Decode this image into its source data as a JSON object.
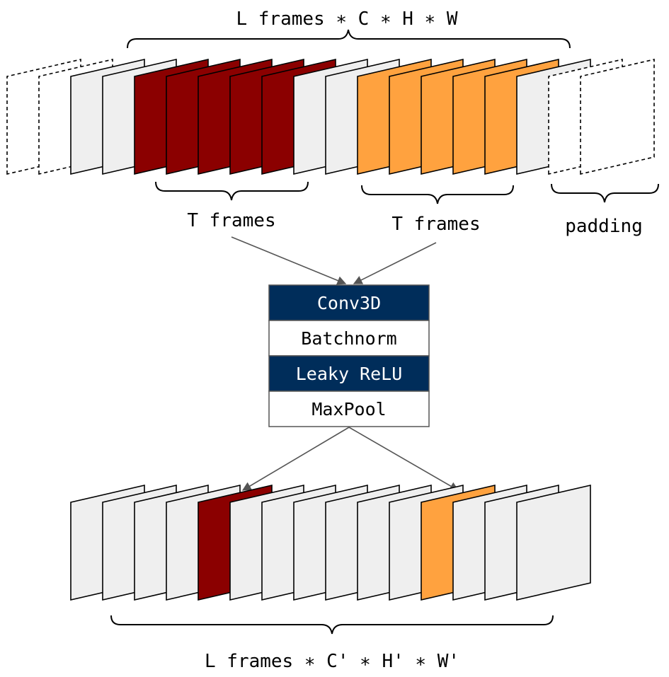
{
  "top_label": "L frames ∗ C ∗ H ∗ W",
  "top_frames": [
    "pad",
    "pad",
    "empty",
    "empty",
    "red",
    "red",
    "red",
    "red",
    "red",
    "empty",
    "empty",
    "orange",
    "orange",
    "orange",
    "orange",
    "orange",
    "empty",
    "pad",
    "pad"
  ],
  "group_labels": {
    "red_group": "T frames",
    "orange_group": "T frames",
    "padding": "padding"
  },
  "block": {
    "layers": [
      {
        "label": "Conv3D",
        "style": "dark"
      },
      {
        "label": "Batchnorm",
        "style": "light"
      },
      {
        "label": "Leaky ReLU",
        "style": "dark"
      },
      {
        "label": "MaxPool",
        "style": "light"
      }
    ]
  },
  "bottom_frames": [
    "empty",
    "empty",
    "empty",
    "empty",
    "red",
    "empty",
    "empty",
    "empty",
    "empty",
    "empty",
    "empty",
    "orange",
    "empty",
    "empty",
    "empty"
  ],
  "bottom_label": "L frames ∗ C' ∗ H' ∗ W'",
  "colors": {
    "red": "#8b0000",
    "orange": "#ffa23f",
    "empty": "#efefef",
    "dark_block": "#002d5a",
    "arrow": "#555555"
  }
}
